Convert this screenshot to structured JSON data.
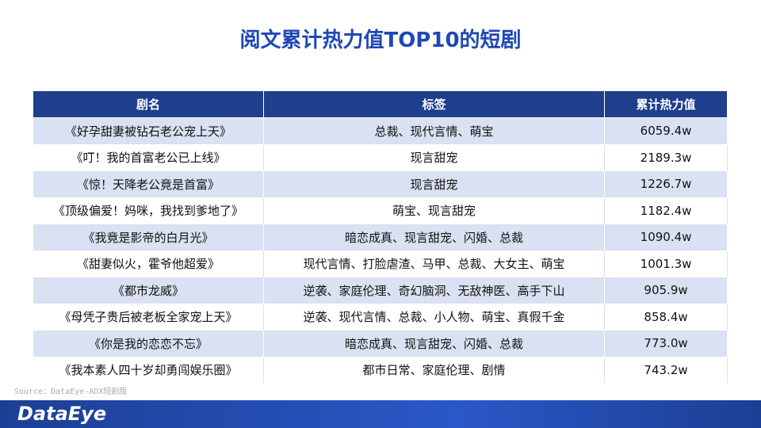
{
  "header": {
    "title": "阅文累计热力值TOP10的短剧"
  },
  "table": {
    "columns": [
      "剧名",
      "标签",
      "累计热力值"
    ],
    "rows": [
      [
        "《好孕甜妻被钻石老公宠上天》",
        "总裁、现代言情、萌宝",
        "6059.4w"
      ],
      [
        "《叮！我的首富老公已上线》",
        "现言甜宠",
        "2189.3w"
      ],
      [
        "《惊！天降老公竟是首富》",
        "现言甜宠",
        "1226.7w"
      ],
      [
        "《顶级偏爱！妈咪，我找到爹地了》",
        "萌宝、现言甜宠",
        "1182.4w"
      ],
      [
        "《我竟是影帝的白月光》",
        "暗恋成真、现言甜宠、闪婚、总裁",
        "1090.4w"
      ],
      [
        "《甜妻似火，霍爷他超爱》",
        "现代言情、打脸虐渣、马甲、总裁、大女主、萌宝",
        "1001.3w"
      ],
      [
        "《都市龙威》",
        "逆袭、家庭伦理、奇幻脑洞、无敌神医、高手下山",
        "905.9w"
      ],
      [
        "《母凭子贵后被老板全家宠上天》",
        "逆袭、现代言情、总裁、小人物、萌宝、真假千金",
        "858.4w"
      ],
      [
        "《你是我的恋恋不忘》",
        "暗恋成真、现言甜宠、闪婚、总裁",
        "773.0w"
      ],
      [
        "《我本素人四十岁却勇闯娱乐圈》",
        "都市日常、家庭伦理、剧情",
        "743.2w"
      ]
    ]
  },
  "source": "Source：DataEye-ADX短剧版",
  "footer": {
    "logo": "DataEye"
  }
}
